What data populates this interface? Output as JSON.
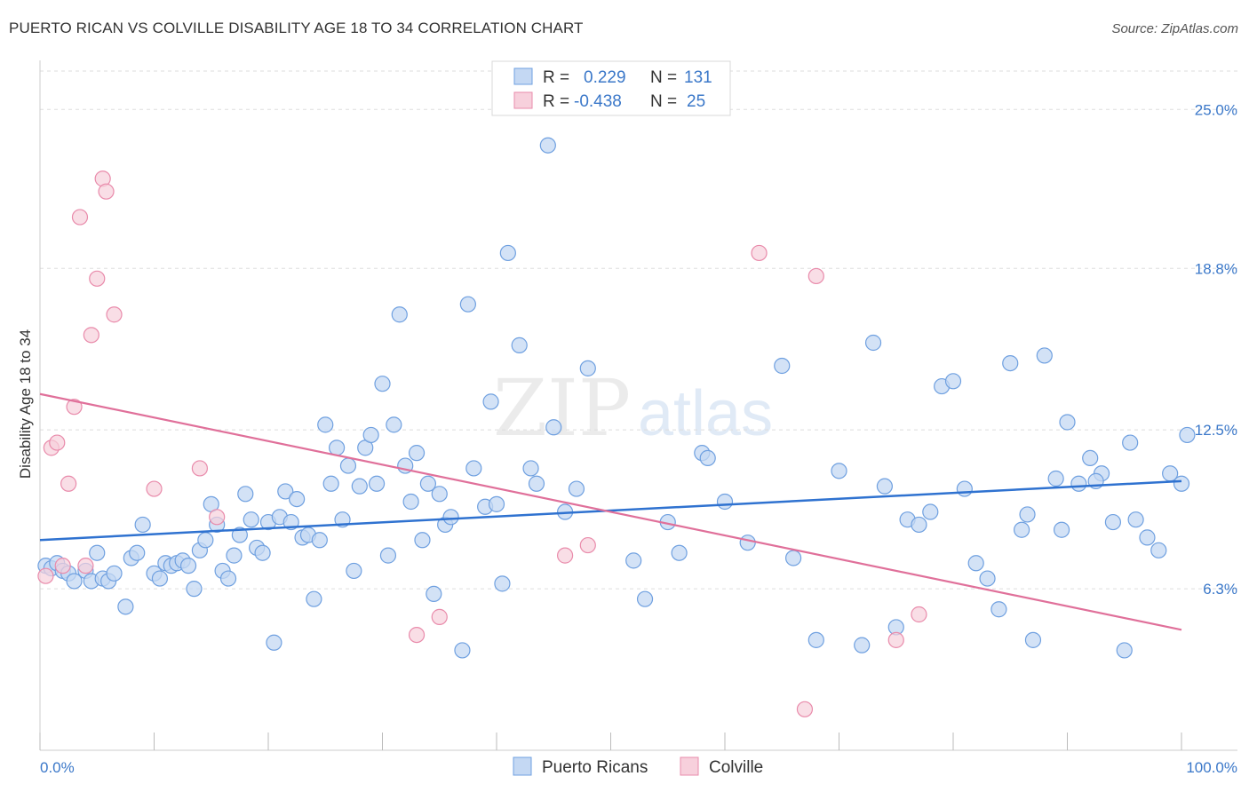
{
  "title": "PUERTO RICAN VS COLVILLE DISABILITY AGE 18 TO 34 CORRELATION CHART",
  "source": "Source: ZipAtlas.com",
  "colors": {
    "blue": "#6fa0e0",
    "blue_fill": "#c4d8f3",
    "blue_line": "#2f72d0",
    "pink": "#e98bab",
    "pink_fill": "#f7d0dc",
    "pink_line": "#e0709a",
    "tick_text": "#3b78c9",
    "grid": "#dddddd"
  },
  "legend": {
    "rows": [
      {
        "r_label": "R =",
        "r_value": "0.229",
        "n_label": "N =",
        "n_value": "131"
      },
      {
        "r_label": "R =",
        "r_value": "-0.438",
        "n_label": "N =",
        "n_value": "25"
      }
    ]
  },
  "watermark": {
    "zip": "ZIP",
    "atlas": "atlas"
  },
  "chart_data": {
    "type": "scatter",
    "title": "PUERTO RICAN VS COLVILLE DISABILITY AGE 18 TO 34 CORRELATION CHART",
    "ylabel": "Disability Age 18 to 34",
    "xlabel": "",
    "xlim": [
      0,
      100
    ],
    "ylim": [
      0,
      26.5
    ],
    "x_tick_labels": [
      "0.0%",
      "100.0%"
    ],
    "y_ticks": [
      6.3,
      12.5,
      18.8,
      25.0
    ],
    "y_tick_labels": [
      "6.3%",
      "12.5%",
      "18.8%",
      "25.0%"
    ],
    "grid": "horizontal dashed",
    "series": [
      {
        "name": "Puerto Ricans",
        "trend": {
          "x": [
            0,
            100
          ],
          "y": [
            8.2,
            10.5
          ]
        },
        "points": [
          [
            0.5,
            7.2
          ],
          [
            1,
            7.1
          ],
          [
            1.5,
            7.3
          ],
          [
            2,
            7.0
          ],
          [
            2.5,
            6.9
          ],
          [
            3,
            6.6
          ],
          [
            4,
            7.0
          ],
          [
            4.5,
            6.6
          ],
          [
            5,
            7.7
          ],
          [
            5.5,
            6.7
          ],
          [
            6,
            6.6
          ],
          [
            6.5,
            6.9
          ],
          [
            7.5,
            5.6
          ],
          [
            8,
            7.5
          ],
          [
            8.5,
            7.7
          ],
          [
            9,
            8.8
          ],
          [
            10,
            6.9
          ],
          [
            10.5,
            6.7
          ],
          [
            11,
            7.3
          ],
          [
            11.5,
            7.2
          ],
          [
            12,
            7.3
          ],
          [
            12.5,
            7.4
          ],
          [
            13,
            7.2
          ],
          [
            13.5,
            6.3
          ],
          [
            14,
            7.8
          ],
          [
            14.5,
            8.2
          ],
          [
            15,
            9.6
          ],
          [
            15.5,
            8.8
          ],
          [
            16,
            7.0
          ],
          [
            16.5,
            6.7
          ],
          [
            17,
            7.6
          ],
          [
            17.5,
            8.4
          ],
          [
            18,
            10.0
          ],
          [
            18.5,
            9.0
          ],
          [
            19,
            7.9
          ],
          [
            19.5,
            7.7
          ],
          [
            20,
            8.9
          ],
          [
            20.5,
            4.2
          ],
          [
            21,
            9.1
          ],
          [
            21.5,
            10.1
          ],
          [
            22,
            8.9
          ],
          [
            22.5,
            9.8
          ],
          [
            23,
            8.3
          ],
          [
            23.5,
            8.4
          ],
          [
            24,
            5.9
          ],
          [
            24.5,
            8.2
          ],
          [
            25,
            12.7
          ],
          [
            25.5,
            10.4
          ],
          [
            26,
            11.8
          ],
          [
            26.5,
            9.0
          ],
          [
            27,
            11.1
          ],
          [
            27.5,
            7.0
          ],
          [
            28,
            10.3
          ],
          [
            28.5,
            11.8
          ],
          [
            29,
            12.3
          ],
          [
            29.5,
            10.4
          ],
          [
            30,
            14.3
          ],
          [
            30.5,
            7.6
          ],
          [
            31,
            12.7
          ],
          [
            31.5,
            17.0
          ],
          [
            32,
            11.1
          ],
          [
            32.5,
            9.7
          ],
          [
            33,
            11.6
          ],
          [
            33.5,
            8.2
          ],
          [
            34,
            10.4
          ],
          [
            34.5,
            6.1
          ],
          [
            35,
            10.0
          ],
          [
            35.5,
            8.8
          ],
          [
            36,
            9.1
          ],
          [
            37,
            3.9
          ],
          [
            37.5,
            17.4
          ],
          [
            38,
            11.0
          ],
          [
            39,
            9.5
          ],
          [
            39.5,
            13.6
          ],
          [
            40,
            9.6
          ],
          [
            40.5,
            6.5
          ],
          [
            41,
            19.4
          ],
          [
            42,
            15.8
          ],
          [
            43,
            11.0
          ],
          [
            43.5,
            10.4
          ],
          [
            44.5,
            23.6
          ],
          [
            45,
            12.6
          ],
          [
            46,
            9.3
          ],
          [
            47,
            10.2
          ],
          [
            48,
            14.9
          ],
          [
            52,
            7.4
          ],
          [
            53,
            5.9
          ],
          [
            55,
            8.9
          ],
          [
            56,
            7.7
          ],
          [
            58,
            11.6
          ],
          [
            58.5,
            11.4
          ],
          [
            60,
            9.7
          ],
          [
            62,
            8.1
          ],
          [
            65,
            15.0
          ],
          [
            66,
            7.5
          ],
          [
            68,
            4.3
          ],
          [
            70,
            10.9
          ],
          [
            72,
            4.1
          ],
          [
            73,
            15.9
          ],
          [
            74,
            10.3
          ],
          [
            75,
            4.8
          ],
          [
            76,
            9.0
          ],
          [
            77,
            8.8
          ],
          [
            78,
            9.3
          ],
          [
            79,
            14.2
          ],
          [
            80,
            14.4
          ],
          [
            81,
            10.2
          ],
          [
            82,
            7.3
          ],
          [
            83,
            6.7
          ],
          [
            84,
            5.5
          ],
          [
            85,
            15.1
          ],
          [
            86,
            8.6
          ],
          [
            87,
            4.3
          ],
          [
            88,
            15.4
          ],
          [
            89,
            10.6
          ],
          [
            90,
            12.8
          ],
          [
            91,
            10.4
          ],
          [
            92,
            11.4
          ],
          [
            93,
            10.8
          ],
          [
            94,
            8.9
          ],
          [
            95,
            3.9
          ],
          [
            96,
            9.0
          ],
          [
            97,
            8.3
          ],
          [
            98,
            7.8
          ],
          [
            99,
            10.8
          ],
          [
            100,
            10.4
          ],
          [
            100.5,
            12.3
          ],
          [
            92.5,
            10.5
          ],
          [
            95.5,
            12.0
          ],
          [
            89.5,
            8.6
          ],
          [
            86.5,
            9.2
          ]
        ]
      },
      {
        "name": "Colville",
        "trend": {
          "x": [
            0,
            100
          ],
          "y": [
            13.9,
            4.7
          ]
        },
        "points": [
          [
            0.5,
            6.8
          ],
          [
            1,
            11.8
          ],
          [
            1.5,
            12.0
          ],
          [
            2,
            7.2
          ],
          [
            2.5,
            10.4
          ],
          [
            3,
            13.4
          ],
          [
            3.5,
            20.8
          ],
          [
            4,
            7.2
          ],
          [
            4.5,
            16.2
          ],
          [
            5,
            18.4
          ],
          [
            5.5,
            22.3
          ],
          [
            5.8,
            21.8
          ],
          [
            6.5,
            17.0
          ],
          [
            10,
            10.2
          ],
          [
            14,
            11.0
          ],
          [
            15.5,
            9.1
          ],
          [
            33,
            4.5
          ],
          [
            35,
            5.2
          ],
          [
            46,
            7.6
          ],
          [
            48,
            8.0
          ],
          [
            63,
            19.4
          ],
          [
            67,
            1.6
          ],
          [
            68,
            18.5
          ],
          [
            75,
            4.3
          ],
          [
            77,
            5.3
          ]
        ]
      }
    ]
  },
  "bottom_legend": [
    {
      "label": "Puerto Ricans"
    },
    {
      "label": "Colville"
    }
  ]
}
